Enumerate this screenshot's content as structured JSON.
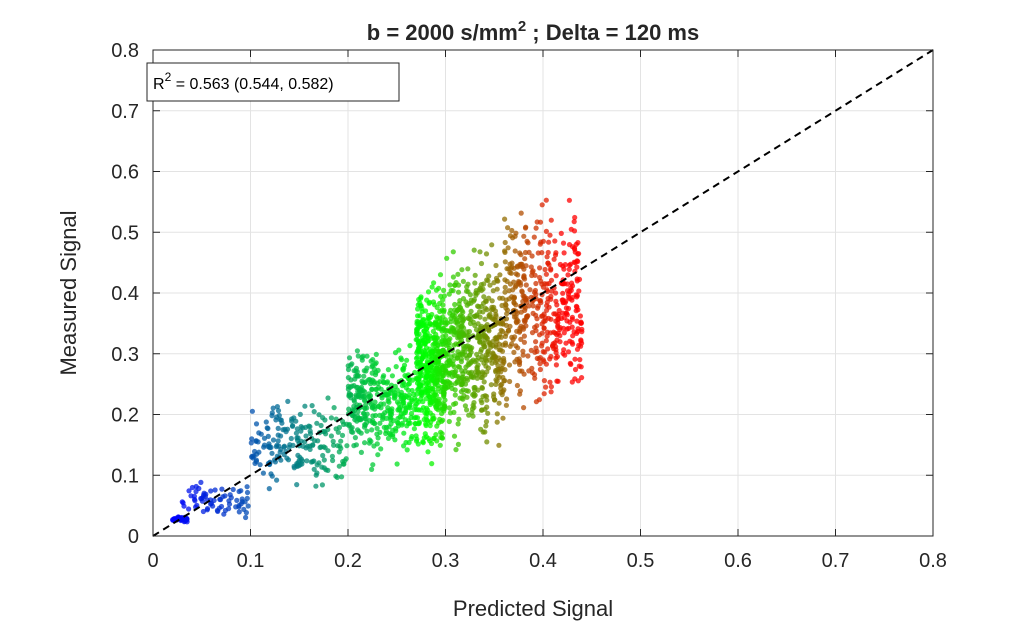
{
  "chart_data": {
    "type": "scatter",
    "title": "b = 2000 s/mm",
    "title_superscript": "2",
    "title_suffix": " ; Delta = 120 ms",
    "xlabel": "Predicted Signal",
    "ylabel": "Measured Signal",
    "xlim": [
      0,
      0.8
    ],
    "ylim": [
      0,
      0.8
    ],
    "xticks": [
      0,
      0.1,
      0.2,
      0.3,
      0.4,
      0.5,
      0.6,
      0.7,
      0.8
    ],
    "yticks": [
      0,
      0.1,
      0.2,
      0.3,
      0.4,
      0.5,
      0.6,
      0.7,
      0.8
    ],
    "xtick_labels": [
      "0",
      "0.1",
      "0.2",
      "0.3",
      "0.4",
      "0.5",
      "0.6",
      "0.7",
      "0.8"
    ],
    "ytick_labels": [
      "0",
      "0.1",
      "0.2",
      "0.3",
      "0.4",
      "0.5",
      "0.6",
      "0.7",
      "0.8"
    ],
    "grid": true,
    "legend_position": "top-left",
    "annotation": {
      "prefix": "R",
      "superscript": "2",
      "text": " = 0.563 (0.544, 0.582)",
      "r2": 0.563,
      "ci": [
        0.544,
        0.582
      ]
    },
    "reference_line": {
      "style": "dashed",
      "color": "#000000",
      "from": [
        0,
        0
      ],
      "to": [
        0.8,
        0.8
      ]
    },
    "color_scale": [
      "#0000ff",
      "#00ff00",
      "#ff0000"
    ],
    "point_clusters": [
      {
        "x_range": [
          0.02,
          0.035
        ],
        "y_range": [
          0.02,
          0.035
        ],
        "count": 40
      },
      {
        "x_range": [
          0.03,
          0.1
        ],
        "y_range": [
          0.02,
          0.1
        ],
        "count": 70
      },
      {
        "x_range": [
          0.1,
          0.2
        ],
        "y_range": [
          0.06,
          0.24
        ],
        "count": 200
      },
      {
        "x_range": [
          0.2,
          0.27
        ],
        "y_range": [
          0.1,
          0.34
        ],
        "count": 350
      },
      {
        "x_range": [
          0.27,
          0.3
        ],
        "y_range": [
          0.1,
          0.46
        ],
        "count": 450
      },
      {
        "x_range": [
          0.3,
          0.36
        ],
        "y_range": [
          0.12,
          0.5
        ],
        "count": 500
      },
      {
        "x_range": [
          0.36,
          0.44
        ],
        "y_range": [
          0.18,
          0.575
        ],
        "count": 450
      }
    ]
  }
}
